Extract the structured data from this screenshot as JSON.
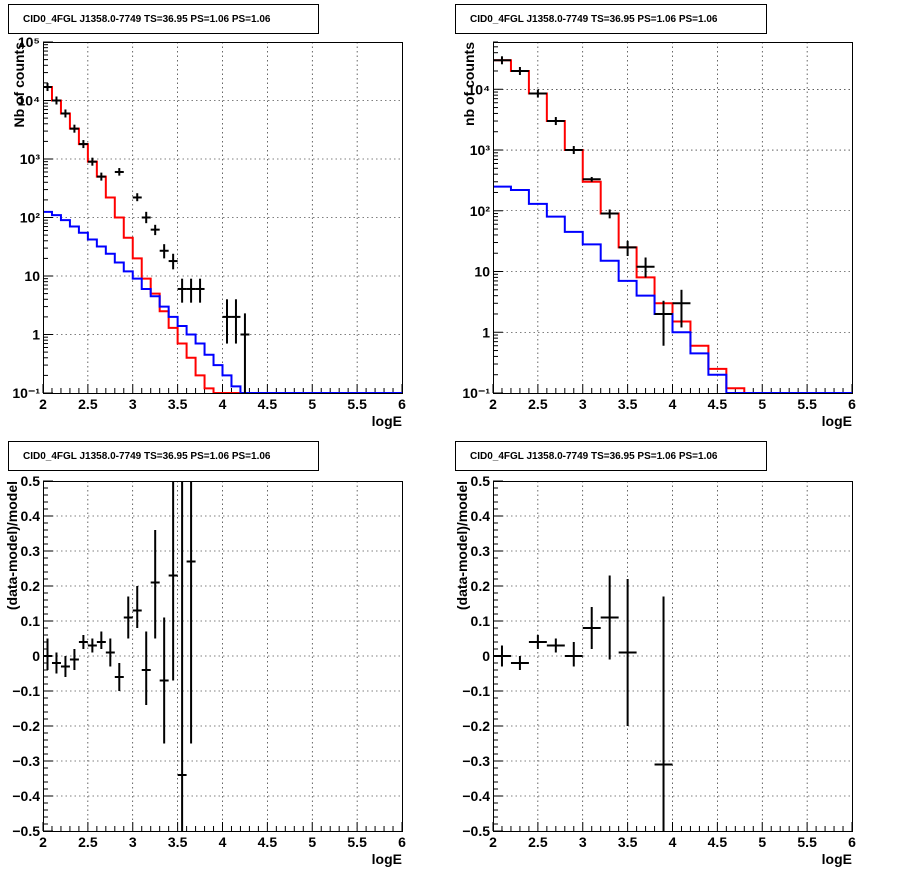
{
  "chart_data": [
    {
      "type": "line",
      "title": "CID0_4FGL J1358.0-7749 TS=36.95 PS=1.06 PS=1.06",
      "xlabel": "logE",
      "ylabel": "Nb of counts",
      "xlim": [
        2,
        6
      ],
      "ylim": [
        0.1,
        100000
      ],
      "yscale": "log",
      "grid": true,
      "x_ticks": [
        "2",
        "2.5",
        "3",
        "3.5",
        "4",
        "4.5",
        "5",
        "5.5",
        "6"
      ],
      "y_ticks": [
        "10⁻¹",
        "1",
        "10",
        "10²",
        "10³",
        "10⁴",
        "10⁵"
      ],
      "y_tick_values": [
        0.1,
        1,
        10,
        100,
        1000,
        10000,
        100000
      ],
      "x_edges": [
        2.0,
        2.1,
        2.2,
        2.3,
        2.4,
        2.5,
        2.6,
        2.7,
        2.8,
        2.9,
        3.0,
        3.1,
        3.2,
        3.3,
        3.4,
        3.5,
        3.6,
        3.7,
        3.8,
        3.9,
        4.0,
        4.1,
        4.2,
        4.3,
        4.4,
        4.5,
        4.6,
        4.7,
        4.8,
        4.9,
        5.0,
        5.1,
        5.2,
        5.3,
        5.4,
        5.5,
        5.6,
        5.7,
        5.8,
        5.9,
        6.0
      ],
      "series": [
        {
          "color": "#ff0000",
          "render": "step",
          "values": [
            17000,
            10000,
            6000,
            3300,
            1800,
            900,
            500,
            220,
            100,
            45,
            20,
            9,
            5,
            2.5,
            1.3,
            0.7,
            0.4,
            0.2,
            0.12,
            0.1,
            0.1,
            0.1,
            0.1,
            0.1,
            0.1,
            0.1,
            0.1,
            0.1,
            0.1,
            0.1,
            0.1,
            0.1,
            0.1,
            0.1,
            0.1,
            0.1,
            0.1,
            0.1,
            0.1,
            0.1
          ]
        },
        {
          "color": "#0000ff",
          "render": "step",
          "values": [
            125,
            110,
            90,
            70,
            55,
            42,
            32,
            24,
            17,
            12,
            9,
            6,
            4.5,
            3,
            2,
            1.4,
            1,
            0.7,
            0.45,
            0.3,
            0.2,
            0.13,
            0.1,
            0.1,
            0.1,
            0.1,
            0.1,
            0.1,
            0.1,
            0.1,
            0.1,
            0.1,
            0.1,
            0.1,
            0.1,
            0.1,
            0.1,
            0.1,
            0.1,
            0.1
          ]
        },
        {
          "color": "#000000",
          "render": "points",
          "points": [
            {
              "x": 2.05,
              "y": 17000,
              "xerr": 0.05
            },
            {
              "x": 2.15,
              "y": 10000,
              "xerr": 0.05
            },
            {
              "x": 2.25,
              "y": 6000,
              "xerr": 0.05
            },
            {
              "x": 2.35,
              "y": 3300,
              "xerr": 0.05
            },
            {
              "x": 2.45,
              "y": 1800,
              "xerr": 0.05
            },
            {
              "x": 2.55,
              "y": 900,
              "xerr": 0.05
            },
            {
              "x": 2.65,
              "y": 500,
              "xerr": 0.05
            },
            {
              "x": 2.85,
              "y": 600,
              "xerr": 0.05,
              "ylo": 520,
              "yhi": 700
            },
            {
              "x": 3.05,
              "y": 220,
              "xerr": 0.05,
              "ylo": 190,
              "yhi": 260
            },
            {
              "x": 3.15,
              "y": 100,
              "xerr": 0.05,
              "ylo": 80,
              "yhi": 125
            },
            {
              "x": 3.25,
              "y": 62,
              "xerr": 0.05,
              "ylo": 50,
              "yhi": 75
            },
            {
              "x": 3.35,
              "y": 27,
              "xerr": 0.05,
              "ylo": 20,
              "yhi": 35
            },
            {
              "x": 3.45,
              "y": 18,
              "xerr": 0.05,
              "ylo": 13,
              "yhi": 24
            },
            {
              "x": 3.55,
              "y": 6,
              "xerr": 0.05,
              "ylo": 3.5,
              "yhi": 9
            },
            {
              "x": 3.65,
              "y": 6,
              "xerr": 0.05,
              "ylo": 3.5,
              "yhi": 9
            },
            {
              "x": 3.75,
              "y": 6,
              "xerr": 0.05,
              "ylo": 3.5,
              "yhi": 9
            },
            {
              "x": 4.05,
              "y": 2,
              "xerr": 0.05,
              "ylo": 0.7,
              "yhi": 4
            },
            {
              "x": 4.15,
              "y": 2,
              "xerr": 0.05,
              "ylo": 0.7,
              "yhi": 4
            },
            {
              "x": 4.25,
              "y": 1,
              "xerr": 0.05,
              "ylo": 0.1,
              "yhi": 2.3
            }
          ]
        }
      ]
    },
    {
      "type": "line",
      "title": "CID0_4FGL J1358.0-7749 TS=36.95 PS=1.06 PS=1.06",
      "xlabel": "logE",
      "ylabel": "nb of counts",
      "xlim": [
        2,
        6
      ],
      "ylim": [
        0.1,
        60000
      ],
      "yscale": "log",
      "grid": true,
      "x_ticks": [
        "2",
        "2.5",
        "3",
        "3.5",
        "4",
        "4.5",
        "5",
        "5.5",
        "6"
      ],
      "y_ticks": [
        "10⁻¹",
        "1",
        "10",
        "10²",
        "10³",
        "10⁴"
      ],
      "y_tick_values": [
        0.1,
        1,
        10,
        100,
        1000,
        10000
      ],
      "x_edges": [
        2.0,
        2.2,
        2.4,
        2.6,
        2.8,
        3.0,
        3.2,
        3.4,
        3.6,
        3.8,
        4.0,
        4.2,
        4.4,
        4.6,
        4.8,
        5.0,
        5.2,
        5.4,
        5.6,
        5.8,
        6.0
      ],
      "series": [
        {
          "color": "#ff0000",
          "render": "step",
          "values": [
            30000,
            20000,
            8500,
            3000,
            1000,
            300,
            90,
            25,
            8,
            3,
            1.5,
            0.6,
            0.25,
            0.12,
            0.1,
            0.1,
            0.1,
            0.1,
            0.1,
            0.1
          ]
        },
        {
          "color": "#0000ff",
          "render": "step",
          "values": [
            250,
            220,
            130,
            80,
            45,
            28,
            15,
            7,
            4,
            2,
            1,
            0.45,
            0.2,
            0.1,
            0.1,
            0.1,
            0.1,
            0.1,
            0.1,
            0.1
          ]
        },
        {
          "color": "#000000",
          "render": "points",
          "points": [
            {
              "x": 2.1,
              "y": 30000,
              "xerr": 0.1
            },
            {
              "x": 2.3,
              "y": 20000,
              "xerr": 0.1
            },
            {
              "x": 2.5,
              "y": 8500,
              "xerr": 0.1
            },
            {
              "x": 2.7,
              "y": 3000,
              "xerr": 0.1
            },
            {
              "x": 2.9,
              "y": 1000,
              "xerr": 0.1
            },
            {
              "x": 3.1,
              "y": 330,
              "xerr": 0.1,
              "ylo": 300,
              "yhi": 360
            },
            {
              "x": 3.3,
              "y": 90,
              "xerr": 0.1,
              "ylo": 75,
              "yhi": 105
            },
            {
              "x": 3.5,
              "y": 25,
              "xerr": 0.1,
              "ylo": 18,
              "yhi": 32
            },
            {
              "x": 3.7,
              "y": 12,
              "xerr": 0.1,
              "ylo": 8,
              "yhi": 17
            },
            {
              "x": 3.9,
              "y": 2,
              "xerr": 0.1,
              "ylo": 0.6,
              "yhi": 3.3
            },
            {
              "x": 4.1,
              "y": 3,
              "xerr": 0.1,
              "ylo": 1.2,
              "yhi": 5
            }
          ]
        }
      ]
    },
    {
      "type": "scatter",
      "title": "CID0_4FGL J1358.0-7749 TS=36.95 PS=1.06 PS=1.06",
      "xlabel": "logE",
      "ylabel": "(data-model)/model",
      "xlim": [
        2,
        6
      ],
      "ylim": [
        -0.5,
        0.5
      ],
      "yscale": "linear",
      "grid": true,
      "x_ticks": [
        "2",
        "2.5",
        "3",
        "3.5",
        "4",
        "4.5",
        "5",
        "5.5",
        "6"
      ],
      "y_ticks": [
        "−0.5",
        "−0.4",
        "−0.3",
        "−0.2",
        "−0.1",
        "0",
        "0.1",
        "0.2",
        "0.3",
        "0.4",
        "0.5"
      ],
      "y_tick_values": [
        -0.5,
        -0.4,
        -0.3,
        -0.2,
        -0.1,
        0,
        0.1,
        0.2,
        0.3,
        0.4,
        0.5
      ],
      "series": [
        {
          "color": "#000000",
          "render": "points",
          "points": [
            {
              "x": 2.05,
              "y": 0.0,
              "xerr": 0.05,
              "ylo": -0.04,
              "yhi": 0.05
            },
            {
              "x": 2.15,
              "y": -0.02,
              "xerr": 0.05,
              "ylo": -0.05,
              "yhi": 0.01
            },
            {
              "x": 2.25,
              "y": -0.03,
              "xerr": 0.05,
              "ylo": -0.06,
              "yhi": 0.0
            },
            {
              "x": 2.35,
              "y": -0.01,
              "xerr": 0.05,
              "ylo": -0.04,
              "yhi": 0.02
            },
            {
              "x": 2.45,
              "y": 0.04,
              "xerr": 0.05,
              "ylo": 0.02,
              "yhi": 0.06
            },
            {
              "x": 2.55,
              "y": 0.03,
              "xerr": 0.05,
              "ylo": 0.01,
              "yhi": 0.05
            },
            {
              "x": 2.65,
              "y": 0.04,
              "xerr": 0.05,
              "ylo": 0.02,
              "yhi": 0.07
            },
            {
              "x": 2.75,
              "y": 0.01,
              "xerr": 0.05,
              "ylo": -0.03,
              "yhi": 0.05
            },
            {
              "x": 2.85,
              "y": -0.06,
              "xerr": 0.05,
              "ylo": -0.1,
              "yhi": -0.02
            },
            {
              "x": 2.95,
              "y": 0.11,
              "xerr": 0.05,
              "ylo": 0.05,
              "yhi": 0.17
            },
            {
              "x": 3.05,
              "y": 0.13,
              "xerr": 0.05,
              "ylo": 0.08,
              "yhi": 0.2
            },
            {
              "x": 3.15,
              "y": -0.04,
              "xerr": 0.05,
              "ylo": -0.14,
              "yhi": 0.07
            },
            {
              "x": 3.25,
              "y": 0.21,
              "xerr": 0.05,
              "ylo": 0.05,
              "yhi": 0.36
            },
            {
              "x": 3.35,
              "y": -0.07,
              "xerr": 0.05,
              "ylo": -0.25,
              "yhi": 0.11
            },
            {
              "x": 3.45,
              "y": 0.23,
              "xerr": 0.05,
              "ylo": -0.07,
              "yhi": 0.5
            },
            {
              "x": 3.55,
              "y": -0.34,
              "xerr": 0.05,
              "ylo": -0.5,
              "yhi": 0.5
            },
            {
              "x": 3.65,
              "y": 0.27,
              "xerr": 0.05,
              "ylo": -0.25,
              "yhi": 0.5
            }
          ]
        }
      ]
    },
    {
      "type": "scatter",
      "title": "CID0_4FGL J1358.0-7749 TS=36.95 PS=1.06 PS=1.06",
      "xlabel": "logE",
      "ylabel": "(data-model)/model",
      "xlim": [
        2,
        6
      ],
      "ylim": [
        -0.5,
        0.5
      ],
      "yscale": "linear",
      "grid": true,
      "x_ticks": [
        "2",
        "2.5",
        "3",
        "3.5",
        "4",
        "4.5",
        "5",
        "5.5",
        "6"
      ],
      "y_ticks": [
        "−0.5",
        "−0.4",
        "−0.3",
        "−0.2",
        "−0.1",
        "0",
        "0.1",
        "0.2",
        "0.3",
        "0.4",
        "0.5"
      ],
      "y_tick_values": [
        -0.5,
        -0.4,
        -0.3,
        -0.2,
        -0.1,
        0,
        0.1,
        0.2,
        0.3,
        0.4,
        0.5
      ],
      "series": [
        {
          "color": "#000000",
          "render": "points",
          "points": [
            {
              "x": 2.1,
              "y": 0.0,
              "xerr": 0.1,
              "ylo": -0.03,
              "yhi": 0.03
            },
            {
              "x": 2.3,
              "y": -0.02,
              "xerr": 0.1,
              "ylo": -0.04,
              "yhi": 0.0
            },
            {
              "x": 2.5,
              "y": 0.04,
              "xerr": 0.1,
              "ylo": 0.02,
              "yhi": 0.06
            },
            {
              "x": 2.7,
              "y": 0.03,
              "xerr": 0.1,
              "ylo": 0.01,
              "yhi": 0.05
            },
            {
              "x": 2.9,
              "y": 0.0,
              "xerr": 0.1,
              "ylo": -0.03,
              "yhi": 0.04
            },
            {
              "x": 3.1,
              "y": 0.08,
              "xerr": 0.1,
              "ylo": 0.02,
              "yhi": 0.14
            },
            {
              "x": 3.3,
              "y": 0.11,
              "xerr": 0.1,
              "ylo": -0.01,
              "yhi": 0.23
            },
            {
              "x": 3.5,
              "y": 0.01,
              "xerr": 0.1,
              "ylo": -0.2,
              "yhi": 0.22
            },
            {
              "x": 3.9,
              "y": -0.31,
              "xerr": 0.1,
              "ylo": -0.5,
              "yhi": 0.17
            }
          ]
        }
      ]
    }
  ]
}
